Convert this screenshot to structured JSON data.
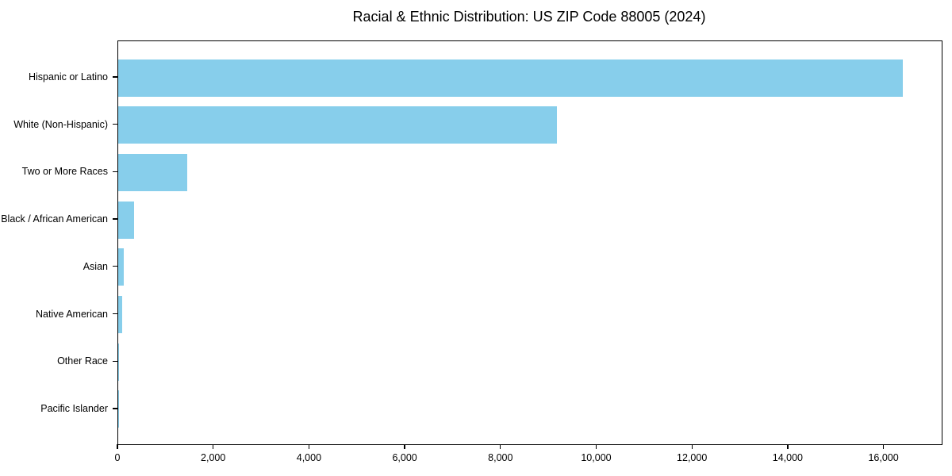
{
  "chart_data": {
    "type": "bar",
    "orientation": "horizontal",
    "title": "Racial & Ethnic Distribution: US ZIP Code 88005 (2024)",
    "categories": [
      "Hispanic or Latino",
      "White (Non-Hispanic)",
      "Two or More Races",
      "Black / African American",
      "Asian",
      "Native American",
      "Other Race",
      "Pacific Islander"
    ],
    "values": [
      16380,
      9170,
      1440,
      330,
      120,
      85,
      15,
      8
    ],
    "xlabel": "",
    "ylabel": "",
    "xlim": [
      0,
      17200
    ],
    "x_ticks": [
      0,
      2000,
      4000,
      6000,
      8000,
      10000,
      12000,
      14000,
      16000
    ],
    "x_tick_labels": [
      "0",
      "2,000",
      "4,000",
      "6,000",
      "8,000",
      "10,000",
      "12,000",
      "14,000",
      "16,000"
    ],
    "bar_color": "#87ceeb",
    "text_color": "#000000",
    "background_color": "#ffffff",
    "grid": false,
    "legend": null
  }
}
